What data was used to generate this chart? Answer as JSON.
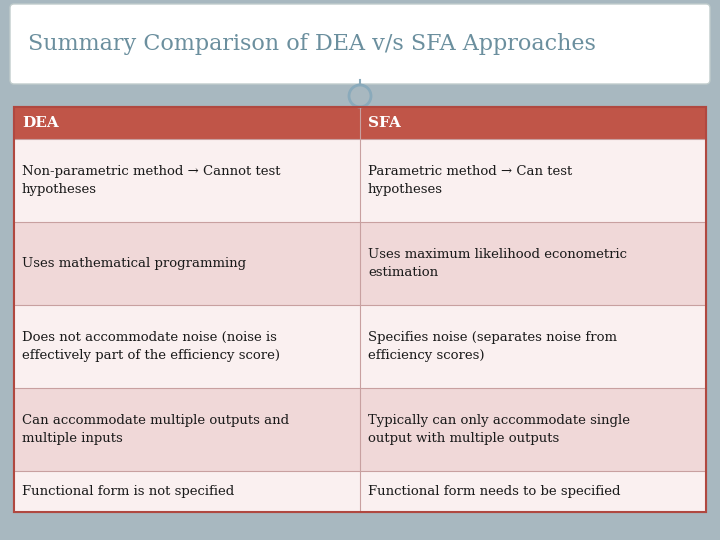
{
  "title": "Summary Comparison of DEA v/s SFA Approaches",
  "title_color": "#6b8f9e",
  "title_fontsize": 16,
  "background_color": "#a8b8c0",
  "table_outer_bg": "#d8e0e4",
  "header_color": "#c05548",
  "header_text_color": "#ffffff",
  "header_fontsize": 11,
  "cell_fontsize": 9.5,
  "alt_row_color": "#f0d8d8",
  "white_row_color": "#faf0f0",
  "border_color": "#b04840",
  "divider_color": "#c8a0a0",
  "col_split": 0.5,
  "headers": [
    "DEA",
    "SFA"
  ],
  "rows": [
    [
      "Non-parametric method → Cannot test\nhypotheses",
      "Parametric method → Can test\nhypotheses"
    ],
    [
      "Uses mathematical programming",
      "Uses maximum likelihood econometric\nestimation"
    ],
    [
      "Does not accommodate noise (noise is\neffectively part of the efficiency score)",
      "Specifies noise (separates noise from\nefficiency scores)"
    ],
    [
      "Can accommodate multiple outputs and\nmultiple inputs",
      "Typically can only accommodate single\noutput with multiple outputs"
    ],
    [
      "Functional form is not specified",
      "Functional form needs to be specified"
    ]
  ],
  "row_lines": [
    2,
    2,
    2,
    2,
    1
  ],
  "connector_color": "#8aaabb"
}
